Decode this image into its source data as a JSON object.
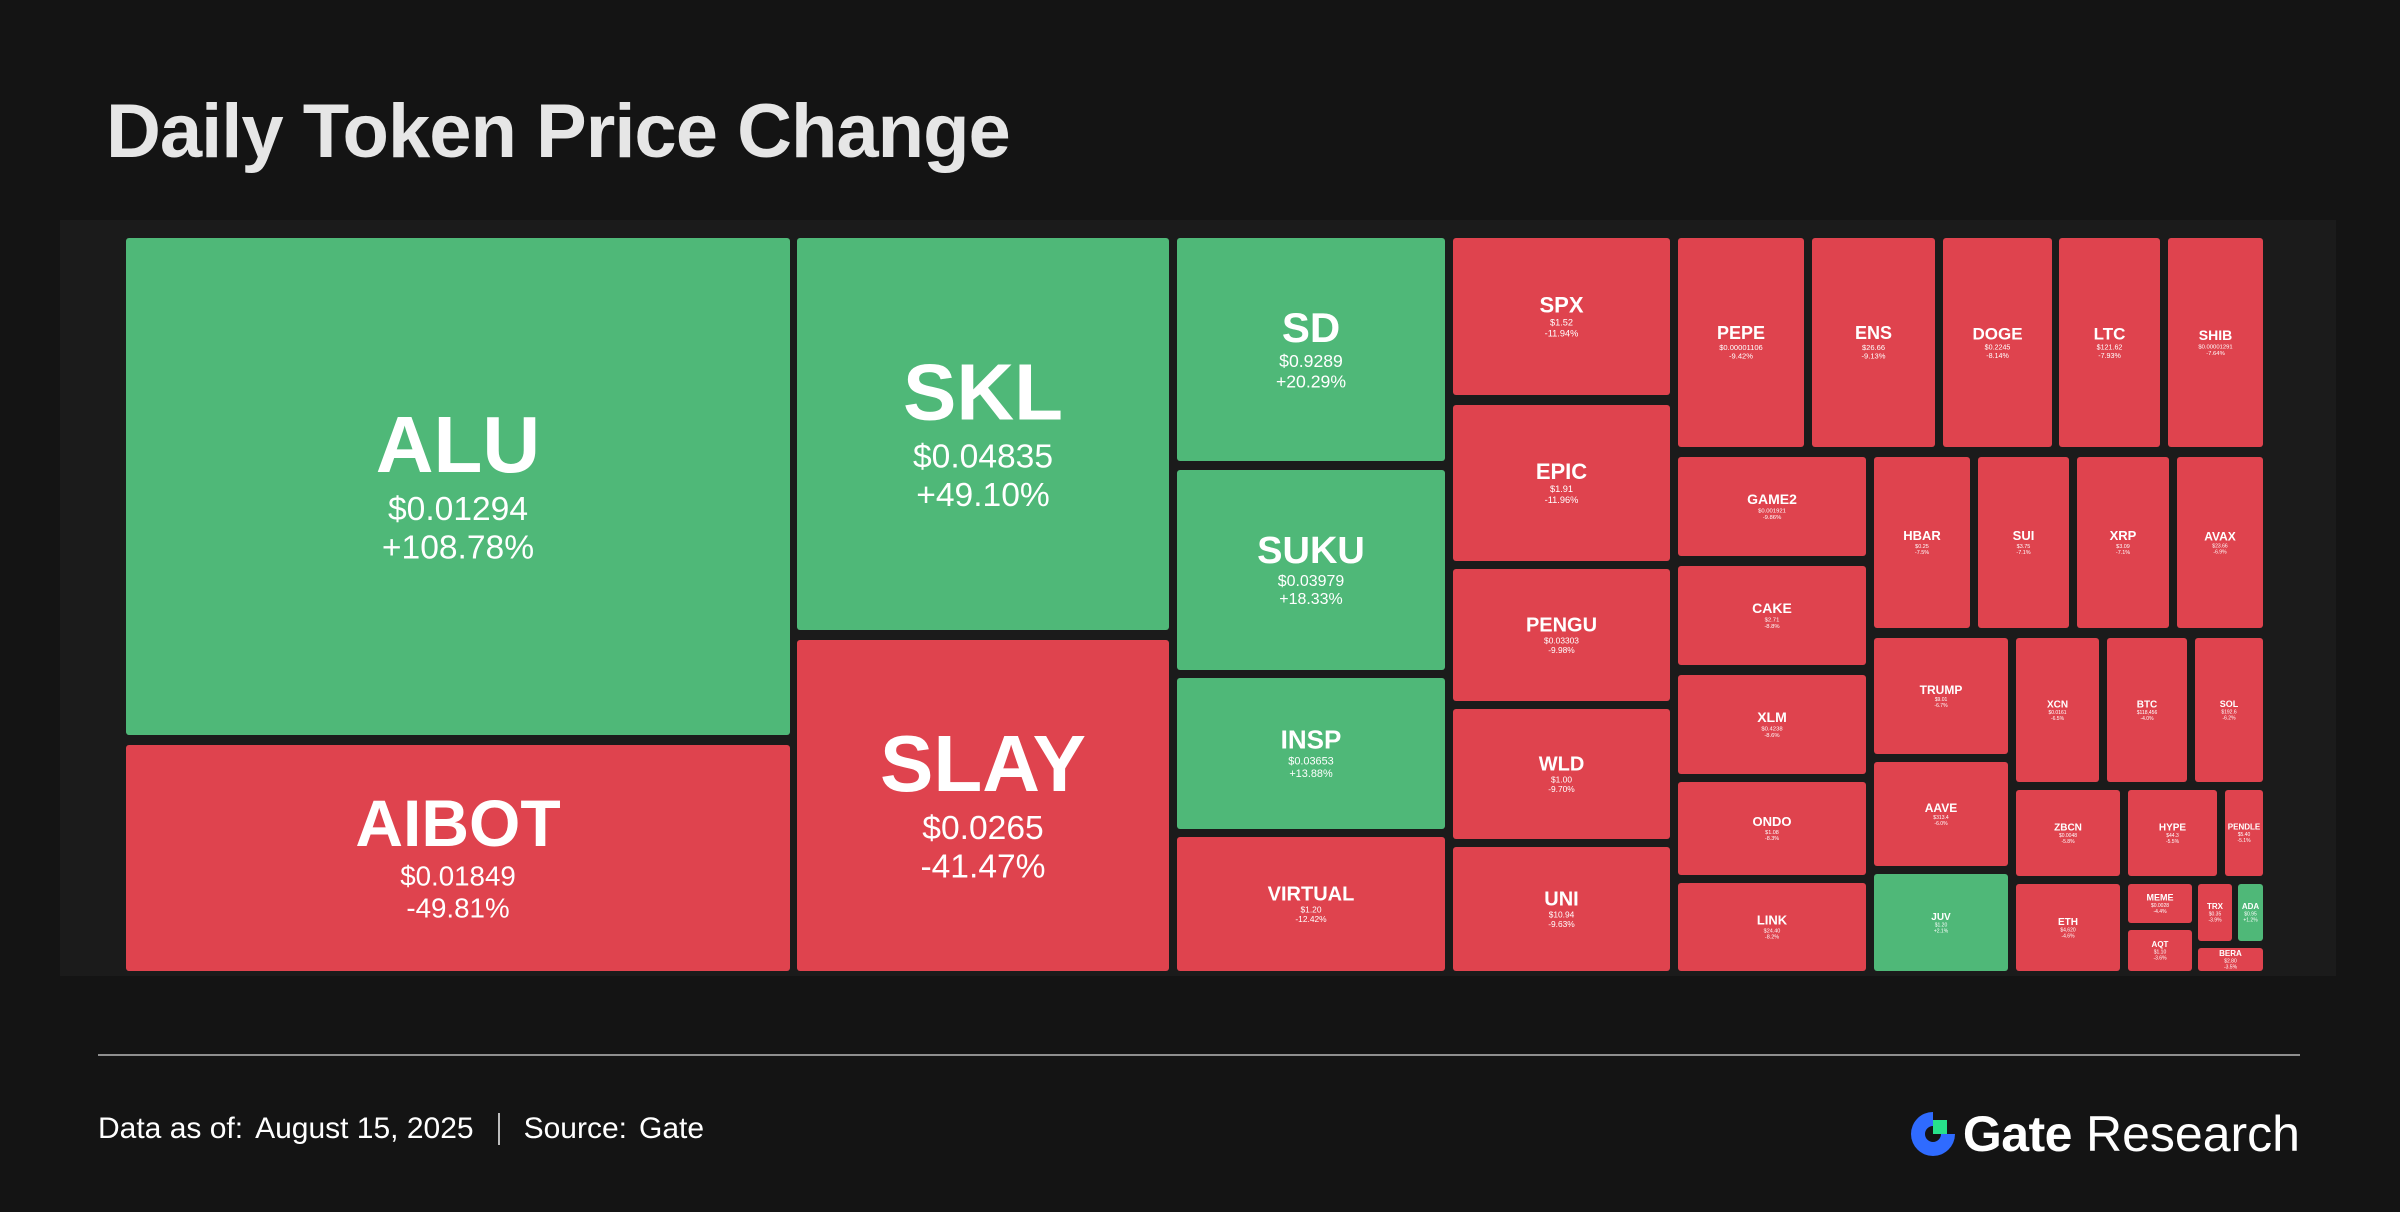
{
  "title": "Daily Token Price Change",
  "footer": {
    "data_as_of_label": "Data as of:",
    "date": "August 15, 2025",
    "source_label": "Source:",
    "source": "Gate"
  },
  "brand": {
    "name": "Gate",
    "suffix": "Research",
    "icon": "gate-logo-icon"
  },
  "colors": {
    "gain": "#4fb878",
    "loss": "#df434e",
    "background": "#141414",
    "text": "#ffffff"
  },
  "chart_data": {
    "type": "heatmap",
    "title": "Daily Token Price Change",
    "tiles": [
      {
        "symbol": "ALU",
        "price": "$0.01294",
        "change": "+108.78%",
        "change_pct": 108.78
      },
      {
        "symbol": "AIBOT",
        "price": "$0.01849",
        "change": "-49.81%",
        "change_pct": -49.81
      },
      {
        "symbol": "SKL",
        "price": "$0.04835",
        "change": "+49.10%",
        "change_pct": 49.1
      },
      {
        "symbol": "SLAY",
        "price": "$0.0265",
        "change": "-41.47%",
        "change_pct": -41.47
      },
      {
        "symbol": "SD",
        "price": "$0.9289",
        "change": "+20.29%",
        "change_pct": 20.29
      },
      {
        "symbol": "SUKU",
        "price": "$0.03979",
        "change": "+18.33%",
        "change_pct": 18.33
      },
      {
        "symbol": "INSP",
        "price": "$0.03653",
        "change": "+13.88%",
        "change_pct": 13.88
      },
      {
        "symbol": "VIRTUAL",
        "price": "$1.20",
        "change": "-12.42%",
        "change_pct": -12.42
      },
      {
        "symbol": "SPX",
        "price": "$1.52",
        "change": "-11.94%",
        "change_pct": -11.94
      },
      {
        "symbol": "EPIC",
        "price": "$1.91",
        "change": "-11.96%",
        "change_pct": -11.96
      },
      {
        "symbol": "PENGU",
        "price": "$0.03303",
        "change": "-9.98%",
        "change_pct": -9.98
      },
      {
        "symbol": "WLD",
        "price": "$1.00",
        "change": "-9.70%",
        "change_pct": -9.7
      },
      {
        "symbol": "UNI",
        "price": "$10.94",
        "change": "-9.63%",
        "change_pct": -9.63
      },
      {
        "symbol": "PEPE",
        "price": "$0.00001106",
        "change": "-9.42%",
        "change_pct": -9.42
      },
      {
        "symbol": "ENS",
        "price": "$26.66",
        "change": "-9.13%",
        "change_pct": -9.13
      },
      {
        "symbol": "DOGE",
        "price": "$0.2245",
        "change": "-8.14%",
        "change_pct": -8.14
      },
      {
        "symbol": "LTC",
        "price": "$121.62",
        "change": "-7.93%",
        "change_pct": -7.93
      },
      {
        "symbol": "SHIB",
        "price": "$0.00001291",
        "change": "-7.64%",
        "change_pct": -7.64
      },
      {
        "symbol": "GAME2",
        "price": "$0.001921",
        "change": "-9.86%",
        "change_pct": -9.86
      },
      {
        "symbol": "HBAR",
        "price": "$0.25",
        "change": "-7.5%",
        "change_pct": -7.5
      },
      {
        "symbol": "SUI",
        "price": "$3.75",
        "change": "-7.1%",
        "change_pct": -7.1
      },
      {
        "symbol": "XRP",
        "price": "$3.09",
        "change": "-7.1%",
        "change_pct": -7.1
      },
      {
        "symbol": "AVAX",
        "price": "$23.66",
        "change": "-6.9%",
        "change_pct": -6.9
      },
      {
        "symbol": "CAKE",
        "price": "$2.71",
        "change": "-8.8%",
        "change_pct": -8.8
      },
      {
        "symbol": "XLM",
        "price": "$0.4238",
        "change": "-8.6%",
        "change_pct": -8.6
      },
      {
        "symbol": "ONDO",
        "price": "$1.08",
        "change": "-8.3%",
        "change_pct": -8.3
      },
      {
        "symbol": "LINK",
        "price": "$24.40",
        "change": "-8.2%",
        "change_pct": -8.2
      },
      {
        "symbol": "TRUMP",
        "price": "$9.01",
        "change": "-6.7%",
        "change_pct": -6.7
      },
      {
        "symbol": "XCN",
        "price": "$0.0161",
        "change": "-6.5%",
        "change_pct": -6.5
      },
      {
        "symbol": "BTC",
        "price": "$118,456",
        "change": "-4.0%",
        "change_pct": -4.0
      },
      {
        "symbol": "SOL",
        "price": "$192.6",
        "change": "-6.2%",
        "change_pct": -6.2
      },
      {
        "symbol": "AAVE",
        "price": "$313.4",
        "change": "-6.0%",
        "change_pct": -6.0
      },
      {
        "symbol": "ZBCN",
        "price": "$0.0048",
        "change": "-5.8%",
        "change_pct": -5.8
      },
      {
        "symbol": "HYPE",
        "price": "$44.3",
        "change": "-5.5%",
        "change_pct": -5.5
      },
      {
        "symbol": "PENDLE",
        "price": "$5.40",
        "change": "-5.1%",
        "change_pct": -5.1
      },
      {
        "symbol": "JUV",
        "price": "$1.20",
        "change": "+2.1%",
        "change_pct": 2.1
      },
      {
        "symbol": "ETH",
        "price": "$4,620",
        "change": "-4.6%",
        "change_pct": -4.6
      },
      {
        "symbol": "MEME",
        "price": "$0.0028",
        "change": "-4.4%",
        "change_pct": -4.4
      },
      {
        "symbol": "TRX",
        "price": "$0.35",
        "change": "-3.9%",
        "change_pct": -3.9
      },
      {
        "symbol": "ADA",
        "price": "$0.95",
        "change": "+1.2%",
        "change_pct": 1.2
      },
      {
        "symbol": "AQT",
        "price": "$1.10",
        "change": "-3.6%",
        "change_pct": -3.6
      },
      {
        "symbol": "BERA",
        "price": "$2.80",
        "change": "-3.5%",
        "change_pct": -3.5
      }
    ]
  }
}
